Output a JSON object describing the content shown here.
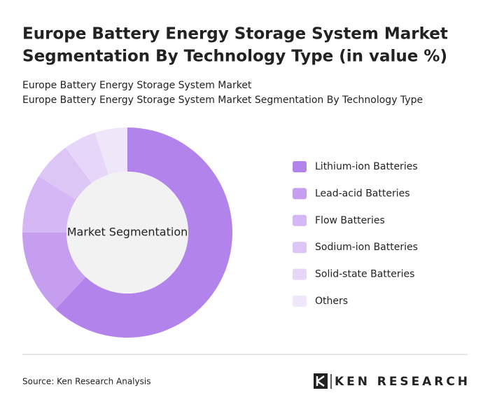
{
  "chart_data": {
    "type": "donut",
    "title": [
      "Europe Battery Energy Storage System Market",
      "Segmentation By Technology Type (in value %)"
    ],
    "subtitle": [
      "Europe Battery Energy Storage System Market",
      "Europe Battery Energy Storage System Market Segmentation By Technology Type"
    ],
    "center_label": "Market Segmentation",
    "categories": [
      "Lithium-ion Batteries",
      "Lead-acid Batteries",
      "Flow Batteries",
      "Sodium-ion Batteries",
      "Solid-state Batteries",
      "Others"
    ],
    "values": [
      62,
      13,
      9,
      6,
      5,
      5
    ],
    "colors": [
      "#b383ec",
      "#c59ef0",
      "#d4b7f4",
      "#dcc6f6",
      "#e6d6f8",
      "#efe6fa"
    ]
  },
  "footer": {
    "source": "Source: Ken Research Analysis",
    "logo": "KEN RESEARCH"
  }
}
